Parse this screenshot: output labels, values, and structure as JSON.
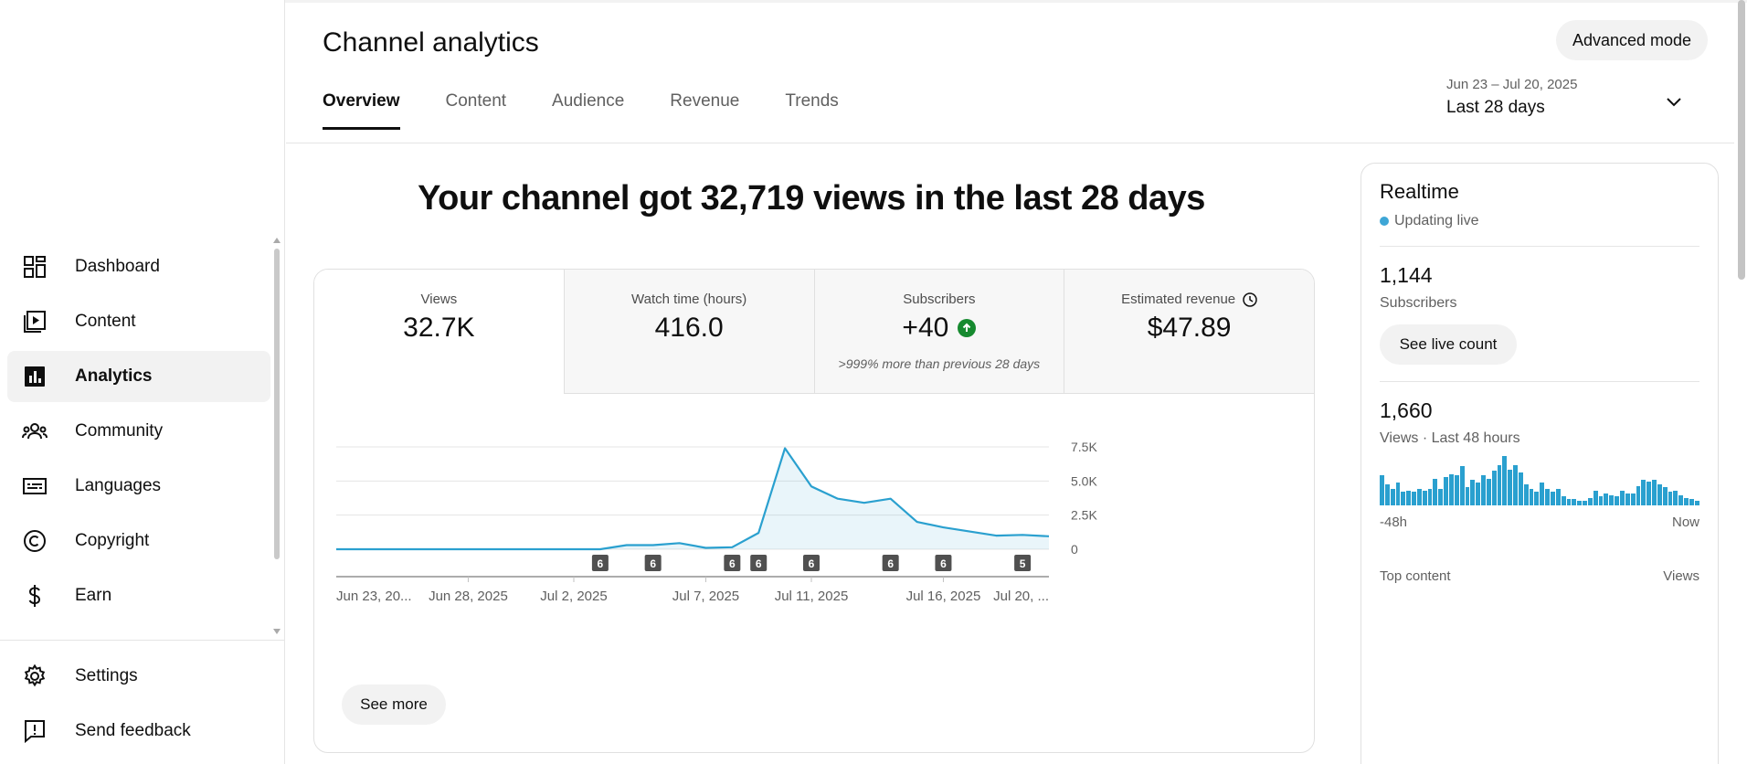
{
  "sidebar": {
    "items": [
      {
        "label": "Dashboard",
        "icon": "dashboard-icon"
      },
      {
        "label": "Content",
        "icon": "content-icon"
      },
      {
        "label": "Analytics",
        "icon": "analytics-icon"
      },
      {
        "label": "Community",
        "icon": "community-icon"
      },
      {
        "label": "Languages",
        "icon": "languages-icon"
      },
      {
        "label": "Copyright",
        "icon": "copyright-icon"
      },
      {
        "label": "Earn",
        "icon": "earn-icon"
      }
    ],
    "bottom": [
      {
        "label": "Settings",
        "icon": "gear-icon"
      },
      {
        "label": "Send feedback",
        "icon": "feedback-icon"
      }
    ]
  },
  "header": {
    "title": "Channel analytics",
    "advanced_label": "Advanced mode",
    "tabs": [
      {
        "label": "Overview"
      },
      {
        "label": "Content"
      },
      {
        "label": "Audience"
      },
      {
        "label": "Revenue"
      },
      {
        "label": "Trends"
      }
    ],
    "date_range": {
      "dates": "Jun 23 – Jul 20, 2025",
      "label": "Last 28 days"
    }
  },
  "headline": "Your channel got 32,719 views in the last 28 days",
  "metrics": [
    {
      "label": "Views",
      "value": "32.7K"
    },
    {
      "label": "Watch time (hours)",
      "value": "416.0"
    },
    {
      "label": "Subscribers",
      "value": "+40",
      "note": ">999% more than previous 28 days"
    },
    {
      "label": "Estimated revenue",
      "value": "$47.89"
    }
  ],
  "see_more_label": "See more",
  "chart_data": {
    "type": "area",
    "x": [
      "Jun 23",
      "Jun 24",
      "Jun 25",
      "Jun 26",
      "Jun 27",
      "Jun 28",
      "Jun 29",
      "Jun 30",
      "Jul 1",
      "Jul 2",
      "Jul 3",
      "Jul 4",
      "Jul 5",
      "Jul 6",
      "Jul 7",
      "Jul 8",
      "Jul 9",
      "Jul 10",
      "Jul 11",
      "Jul 12",
      "Jul 13",
      "Jul 14",
      "Jul 15",
      "Jul 16",
      "Jul 17",
      "Jul 18",
      "Jul 19",
      "Jul 20"
    ],
    "series": [
      {
        "values": [
          0,
          0,
          0,
          0,
          0,
          0,
          0,
          0,
          0,
          0,
          0,
          300,
          300,
          450,
          100,
          150,
          1200,
          7400,
          4600,
          3700,
          3400,
          3700,
          2000,
          1600,
          1300,
          1000,
          1050,
          950
        ]
      }
    ],
    "x_tick_labels": [
      "Jun 23, 20...",
      "Jun 28, 2025",
      "Jul 2, 2025",
      "Jul 7, 2025",
      "Jul 11, 2025",
      "Jul 16, 2025",
      "Jul 20, ..."
    ],
    "y_tick_labels": [
      "0",
      "2.5K",
      "5.0K",
      "7.5K"
    ],
    "ylim": [
      0,
      7500
    ],
    "markers": [
      {
        "date": "Jul 3",
        "count": "6"
      },
      {
        "date": "Jul 5",
        "count": "6"
      },
      {
        "date": "Jul 8",
        "count": "6"
      },
      {
        "date": "Jul 9",
        "count": "6"
      },
      {
        "date": "Jul 11",
        "count": "6"
      },
      {
        "date": "Jul 14",
        "count": "6"
      },
      {
        "date": "Jul 16",
        "count": "6"
      },
      {
        "date": "Jul 19",
        "count": "5"
      }
    ],
    "color": "#2aa0cf",
    "grid": true
  },
  "realtime": {
    "title": "Realtime",
    "status": "Updating live",
    "subscribers_value": "1,144",
    "subscribers_label": "Subscribers",
    "live_count_label": "See live count",
    "views_value": "1,660",
    "views_label": "Views · Last 48 hours",
    "bars": [
      40,
      28,
      22,
      30,
      18,
      20,
      18,
      22,
      20,
      22,
      36,
      22,
      38,
      42,
      40,
      52,
      24,
      34,
      30,
      40,
      36,
      46,
      54,
      66,
      48,
      54,
      44,
      28,
      22,
      18,
      30,
      22,
      18,
      22,
      12,
      8,
      8,
      6,
      6,
      10,
      20,
      12,
      16,
      14,
      12,
      20,
      16,
      16,
      26,
      34,
      32,
      34,
      28,
      24,
      18,
      20,
      14,
      10,
      8,
      6
    ],
    "axis_start": "-48h",
    "axis_end": "Now",
    "top_content_label": "Top content",
    "top_views_label": "Views",
    "accent": "#3ea6d6"
  }
}
